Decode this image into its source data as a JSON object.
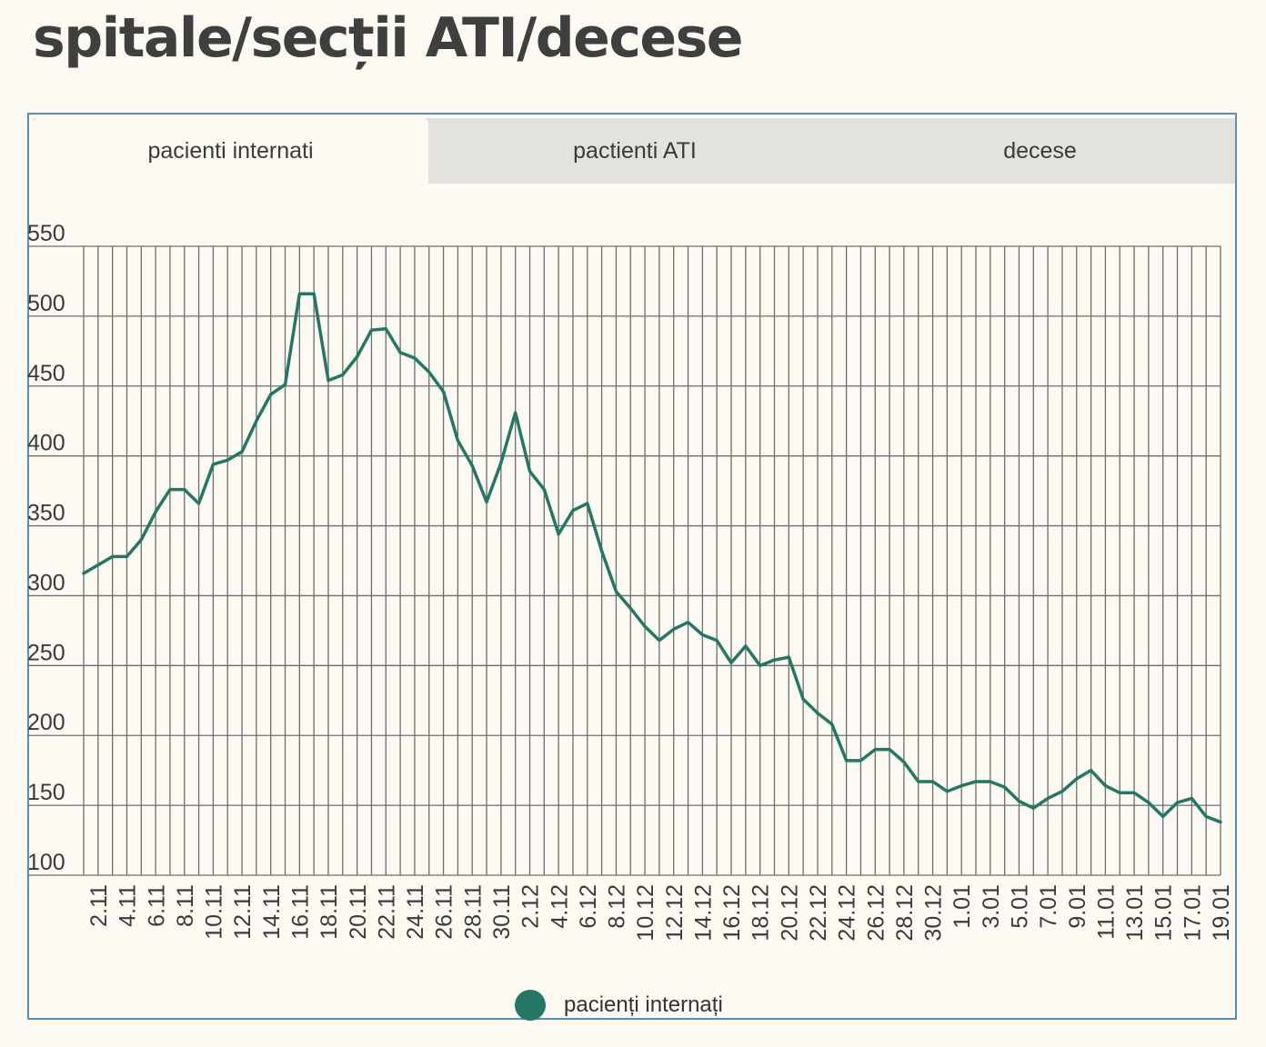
{
  "page": {
    "title": "spitale/secții ATI/decese"
  },
  "tabs": [
    {
      "label": "pacienti internati",
      "active": true
    },
    {
      "label": "pactienti ATI",
      "active": false
    },
    {
      "label": "decese",
      "active": false
    }
  ],
  "colors": {
    "series": "#247665",
    "grid": "#6e6e6e",
    "panel_border": "#5b8fb4",
    "tab_inactive": "#e4e2dc",
    "background": "#fcfaf2"
  },
  "chart_data": {
    "type": "line",
    "title": "",
    "xlabel": "",
    "ylabel": "",
    "ylim": [
      100,
      550
    ],
    "y_ticks": [
      100,
      150,
      200,
      250,
      300,
      350,
      400,
      450,
      500,
      550
    ],
    "grid": true,
    "legend_position": "bottom",
    "x_tick_labels": [
      "2.11",
      "4.11",
      "6.11",
      "8.11",
      "10.11",
      "12.11",
      "14.11",
      "16.11",
      "18.11",
      "20.11",
      "22.11",
      "24.11",
      "26.11",
      "28.11",
      "30.11",
      "2.12",
      "4.12",
      "6.12",
      "8.12",
      "10.12",
      "12.12",
      "14.12",
      "16.12",
      "18.12",
      "20.12",
      "22.12",
      "24.12",
      "26.12",
      "28.12",
      "30.12",
      "1.01",
      "3.01",
      "5.01",
      "7.01",
      "9.01",
      "11.01",
      "13.01",
      "15.01",
      "17.01",
      "19.01"
    ],
    "series": [
      {
        "name": "pacienți internați",
        "color": "#247665",
        "start_label": "1.11",
        "values": [
          316,
          322,
          328,
          328,
          340,
          360,
          376,
          376,
          366,
          394,
          397,
          403,
          425,
          444,
          451,
          516,
          516,
          454,
          458,
          471,
          490,
          491,
          474,
          470,
          460,
          446,
          411,
          393,
          367,
          395,
          431,
          389,
          376,
          344,
          361,
          366,
          332,
          303,
          291,
          278,
          268,
          276,
          281,
          272,
          268,
          252,
          264,
          250,
          254,
          256,
          226,
          216,
          208,
          182,
          182,
          190,
          190,
          181,
          167,
          167,
          160,
          164,
          167,
          167,
          163,
          153,
          148,
          155,
          160,
          169,
          175,
          164,
          159,
          159,
          152,
          142,
          152,
          155,
          142,
          138
        ]
      }
    ]
  }
}
